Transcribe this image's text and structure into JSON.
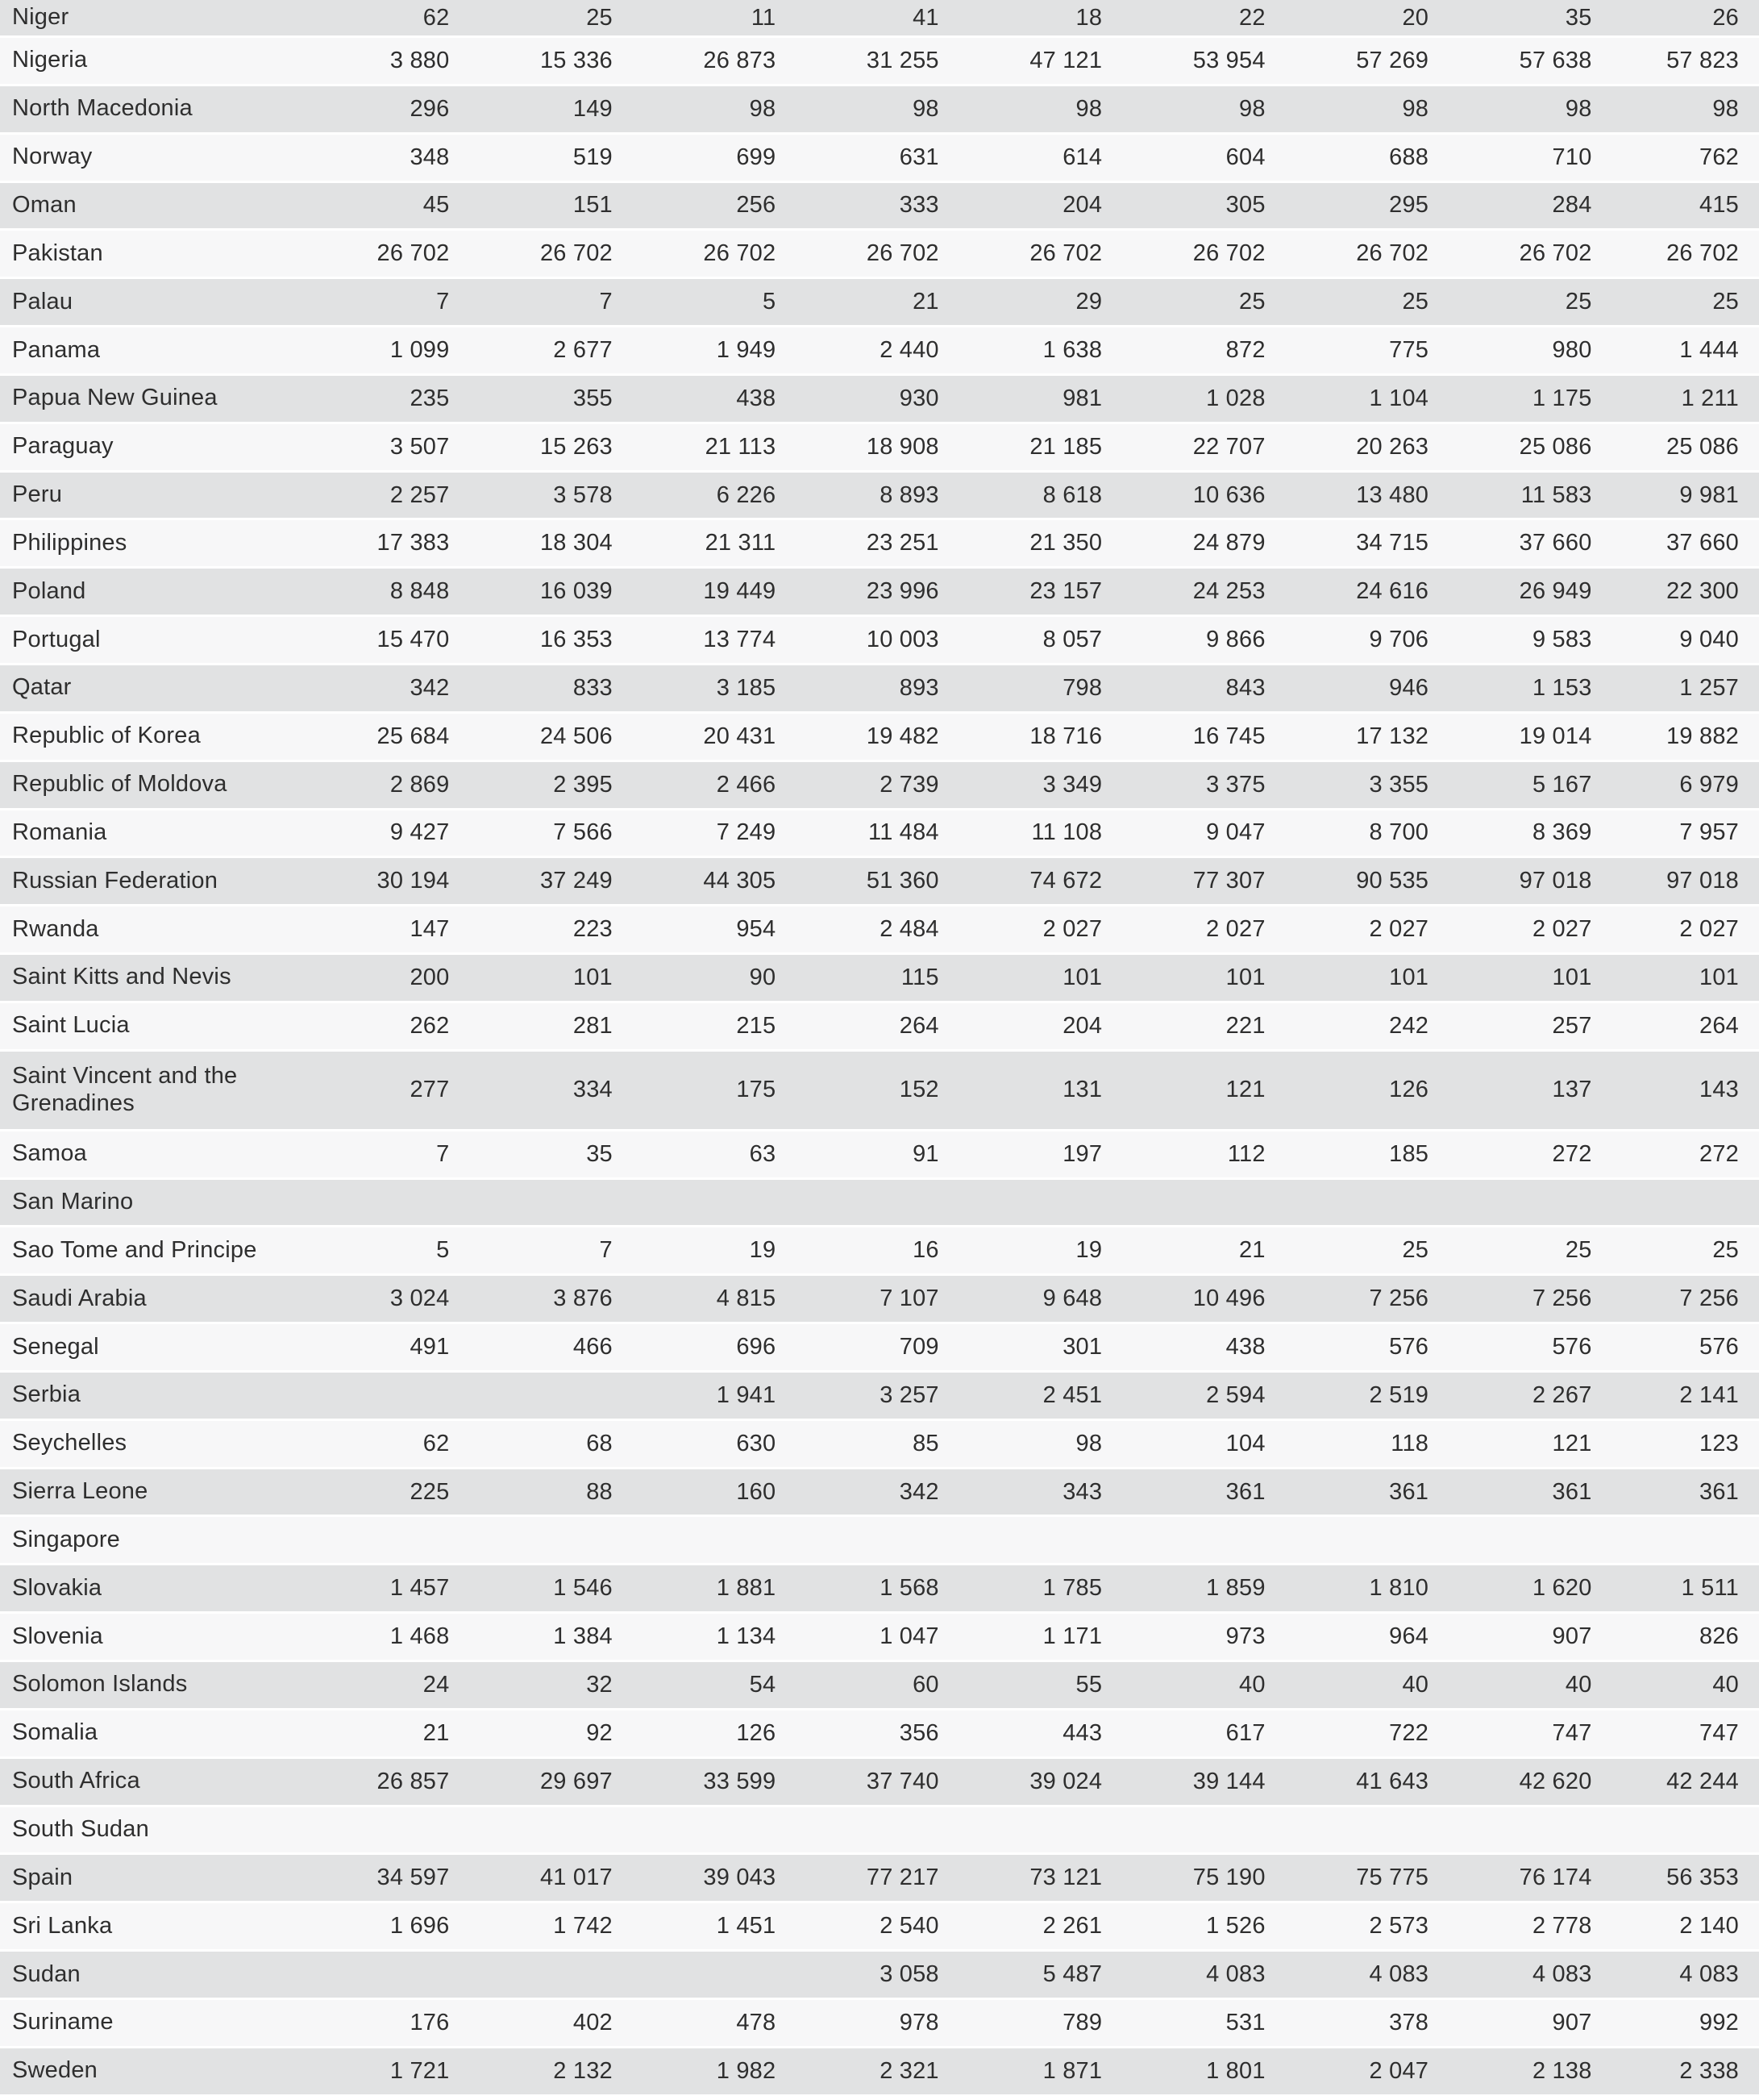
{
  "table": {
    "description_note": "",
    "num_value_columns": 9,
    "rows": [
      {
        "country": "Niger",
        "values": [
          "62",
          "25",
          "11",
          "41",
          "18",
          "22",
          "20",
          "35",
          "26"
        ]
      },
      {
        "country": "Nigeria",
        "values": [
          "3 880",
          "15 336",
          "26 873",
          "31 255",
          "47 121",
          "53 954",
          "57 269",
          "57 638",
          "57 823"
        ]
      },
      {
        "country": "North Macedonia",
        "values": [
          "296",
          "149",
          "98",
          "98",
          "98",
          "98",
          "98",
          "98",
          "98"
        ]
      },
      {
        "country": "Norway",
        "values": [
          "348",
          "519",
          "699",
          "631",
          "614",
          "604",
          "688",
          "710",
          "762"
        ]
      },
      {
        "country": "Oman",
        "values": [
          "45",
          "151",
          "256",
          "333",
          "204",
          "305",
          "295",
          "284",
          "415"
        ]
      },
      {
        "country": "Pakistan",
        "values": [
          "26 702",
          "26 702",
          "26 702",
          "26 702",
          "26 702",
          "26 702",
          "26 702",
          "26 702",
          "26 702"
        ]
      },
      {
        "country": "Palau",
        "values": [
          "7",
          "7",
          "5",
          "21",
          "29",
          "25",
          "25",
          "25",
          "25"
        ]
      },
      {
        "country": "Panama",
        "values": [
          "1 099",
          "2 677",
          "1 949",
          "2 440",
          "1 638",
          "872",
          "775",
          "980",
          "1 444"
        ]
      },
      {
        "country": "Papua New Guinea",
        "values": [
          "235",
          "355",
          "438",
          "930",
          "981",
          "1 028",
          "1 104",
          "1 175",
          "1 211"
        ]
      },
      {
        "country": "Paraguay",
        "values": [
          "3 507",
          "15 263",
          "21 113",
          "18 908",
          "21 185",
          "22 707",
          "20 263",
          "25 086",
          "25 086"
        ]
      },
      {
        "country": "Peru",
        "values": [
          "2 257",
          "3 578",
          "6 226",
          "8 893",
          "8 618",
          "10 636",
          "13 480",
          "11 583",
          "9 981"
        ]
      },
      {
        "country": "Philippines",
        "values": [
          "17 383",
          "18 304",
          "21 311",
          "23 251",
          "21 350",
          "24 879",
          "34 715",
          "37 660",
          "37 660"
        ]
      },
      {
        "country": "Poland",
        "values": [
          "8 848",
          "16 039",
          "19 449",
          "23 996",
          "23 157",
          "24 253",
          "24 616",
          "26 949",
          "22 300"
        ]
      },
      {
        "country": "Portugal",
        "values": [
          "15 470",
          "16 353",
          "13 774",
          "10 003",
          "8 057",
          "9 866",
          "9 706",
          "9 583",
          "9 040"
        ]
      },
      {
        "country": "Qatar",
        "values": [
          "342",
          "833",
          "3 185",
          "893",
          "798",
          "843",
          "946",
          "1 153",
          "1 257"
        ]
      },
      {
        "country": "Republic of Korea",
        "values": [
          "25 684",
          "24 506",
          "20 431",
          "19 482",
          "18 716",
          "16 745",
          "17 132",
          "19 014",
          "19 882"
        ]
      },
      {
        "country": "Republic of Moldova",
        "values": [
          "2 869",
          "2 395",
          "2 466",
          "2 739",
          "3 349",
          "3 375",
          "3 355",
          "5 167",
          "6 979"
        ]
      },
      {
        "country": "Romania",
        "values": [
          "9 427",
          "7 566",
          "7 249",
          "11 484",
          "11 108",
          "9 047",
          "8 700",
          "8 369",
          "7 957"
        ]
      },
      {
        "country": "Russian Federation",
        "values": [
          "30 194",
          "37 249",
          "44 305",
          "51 360",
          "74 672",
          "77 307",
          "90 535",
          "97 018",
          "97 018"
        ]
      },
      {
        "country": "Rwanda",
        "values": [
          "147",
          "223",
          "954",
          "2 484",
          "2 027",
          "2 027",
          "2 027",
          "2 027",
          "2 027"
        ]
      },
      {
        "country": "Saint Kitts and Nevis",
        "values": [
          "200",
          "101",
          "90",
          "115",
          "101",
          "101",
          "101",
          "101",
          "101"
        ]
      },
      {
        "country": "Saint Lucia",
        "values": [
          "262",
          "281",
          "215",
          "264",
          "204",
          "221",
          "242",
          "257",
          "264"
        ]
      },
      {
        "country": "Saint Vincent and the Grenadines",
        "values": [
          "277",
          "334",
          "175",
          "152",
          "131",
          "121",
          "126",
          "137",
          "143"
        ]
      },
      {
        "country": "Samoa",
        "values": [
          "7",
          "35",
          "63",
          "91",
          "197",
          "112",
          "185",
          "272",
          "272"
        ]
      },
      {
        "country": "San Marino",
        "values": [
          "",
          "",
          "",
          "",
          "",
          "",
          "",
          "",
          ""
        ]
      },
      {
        "country": "Sao Tome and Principe",
        "values": [
          "5",
          "7",
          "19",
          "16",
          "19",
          "21",
          "25",
          "25",
          "25"
        ]
      },
      {
        "country": "Saudi Arabia",
        "values": [
          "3 024",
          "3 876",
          "4 815",
          "7 107",
          "9 648",
          "10 496",
          "7 256",
          "7 256",
          "7 256"
        ]
      },
      {
        "country": "Senegal",
        "values": [
          "491",
          "466",
          "696",
          "709",
          "301",
          "438",
          "576",
          "576",
          "576"
        ]
      },
      {
        "country": "Serbia",
        "values": [
          "",
          "",
          "1 941",
          "3 257",
          "2 451",
          "2 594",
          "2 519",
          "2 267",
          "2 141"
        ]
      },
      {
        "country": "Seychelles",
        "values": [
          "62",
          "68",
          "630",
          "85",
          "98",
          "104",
          "118",
          "121",
          "123"
        ]
      },
      {
        "country": "Sierra Leone",
        "values": [
          "225",
          "88",
          "160",
          "342",
          "343",
          "361",
          "361",
          "361",
          "361"
        ]
      },
      {
        "country": "Singapore",
        "values": [
          "",
          "",
          "",
          "",
          "",
          "",
          "",
          "",
          ""
        ]
      },
      {
        "country": "Slovakia",
        "values": [
          "1 457",
          "1 546",
          "1 881",
          "1 568",
          "1 785",
          "1 859",
          "1 810",
          "1 620",
          "1 511"
        ]
      },
      {
        "country": "Slovenia",
        "values": [
          "1 468",
          "1 384",
          "1 134",
          "1 047",
          "1 171",
          "973",
          "964",
          "907",
          "826"
        ]
      },
      {
        "country": "Solomon Islands",
        "values": [
          "24",
          "32",
          "54",
          "60",
          "55",
          "40",
          "40",
          "40",
          "40"
        ]
      },
      {
        "country": "Somalia",
        "values": [
          "21",
          "92",
          "126",
          "356",
          "443",
          "617",
          "722",
          "747",
          "747"
        ]
      },
      {
        "country": "South Africa",
        "values": [
          "26 857",
          "29 697",
          "33 599",
          "37 740",
          "39 024",
          "39 144",
          "41 643",
          "42 620",
          "42 244"
        ]
      },
      {
        "country": "South Sudan",
        "values": [
          "",
          "",
          "",
          "",
          "",
          "",
          "",
          "",
          ""
        ]
      },
      {
        "country": "Spain",
        "values": [
          "34 597",
          "41 017",
          "39 043",
          "77 217",
          "73 121",
          "75 190",
          "75 775",
          "76 174",
          "56 353"
        ]
      },
      {
        "country": "Sri Lanka",
        "values": [
          "1 696",
          "1 742",
          "1 451",
          "2 540",
          "2 261",
          "1 526",
          "2 573",
          "2 778",
          "2 140"
        ]
      },
      {
        "country": "Sudan",
        "values": [
          "",
          "",
          "",
          "3 058",
          "5 487",
          "4 083",
          "4 083",
          "4 083",
          "4 083"
        ]
      },
      {
        "country": "Suriname",
        "values": [
          "176",
          "402",
          "478",
          "978",
          "789",
          "531",
          "378",
          "907",
          "992"
        ]
      },
      {
        "country": "Sweden",
        "values": [
          "1 721",
          "2 132",
          "1 982",
          "2 321",
          "1 871",
          "1 801",
          "2 047",
          "2 138",
          "2 338"
        ]
      }
    ]
  },
  "colors": {
    "row_gray": "#e1e2e3",
    "row_light": "#f7f7f8",
    "separator": "#ffffff",
    "text": "#2e2e2e"
  }
}
